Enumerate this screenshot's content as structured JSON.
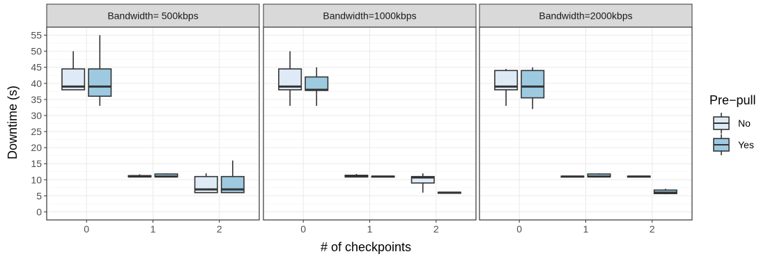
{
  "chart_data": {
    "type": "boxplot",
    "xlabel": "# of checkpoints",
    "ylabel": "Downtime (s)",
    "ylim": [
      -2.5,
      57.5
    ],
    "yticks": [
      0,
      5,
      10,
      15,
      20,
      25,
      30,
      35,
      40,
      45,
      50,
      55
    ],
    "categories": [
      "0",
      "1",
      "2"
    ],
    "legend": {
      "title": "Pre−pull",
      "position": "right",
      "entries": [
        {
          "label": "No",
          "color": "#deebf7"
        },
        {
          "label": "Yes",
          "color": "#9ecae1"
        }
      ]
    },
    "grid": true,
    "panels": [
      {
        "title": "Bandwidth= 500kbps",
        "boxes": [
          {
            "x": "0",
            "group": "No",
            "min": 38,
            "q1": 38,
            "median": 39,
            "q3": 44.5,
            "max": 50
          },
          {
            "x": "0",
            "group": "Yes",
            "min": 33,
            "q1": 36,
            "median": 39,
            "q3": 44.5,
            "max": 55
          },
          {
            "x": "1",
            "group": "No",
            "min": 10.7,
            "q1": 10.9,
            "median": 11,
            "q3": 11.3,
            "max": 11.7
          },
          {
            "x": "1",
            "group": "Yes",
            "min": 10.7,
            "q1": 10.9,
            "median": 11,
            "q3": 11.8,
            "max": 12
          },
          {
            "x": "2",
            "group": "No",
            "min": 6,
            "q1": 6,
            "median": 7,
            "q3": 11,
            "max": 12
          },
          {
            "x": "2",
            "group": "Yes",
            "min": 6,
            "q1": 6,
            "median": 7,
            "q3": 11,
            "max": 16
          }
        ]
      },
      {
        "title": "Bandwidth=1000kbps",
        "boxes": [
          {
            "x": "0",
            "group": "No",
            "min": 33,
            "q1": 38,
            "median": 39,
            "q3": 44.5,
            "max": 50
          },
          {
            "x": "0",
            "group": "Yes",
            "min": 33,
            "q1": 37.8,
            "median": 38,
            "q3": 42,
            "max": 45
          },
          {
            "x": "1",
            "group": "No",
            "min": 10.7,
            "q1": 10.9,
            "median": 11,
            "q3": 11.4,
            "max": 11.8
          },
          {
            "x": "1",
            "group": "Yes",
            "min": 10.8,
            "q1": 10.9,
            "median": 11,
            "q3": 11.1,
            "max": 11.2
          },
          {
            "x": "2",
            "group": "No",
            "min": 6,
            "q1": 9,
            "median": 10.7,
            "q3": 11,
            "max": 12
          },
          {
            "x": "2",
            "group": "Yes",
            "min": 5.7,
            "q1": 5.8,
            "median": 6,
            "q3": 6.1,
            "max": 6.2
          }
        ]
      },
      {
        "title": "Bandwidth=2000kbps",
        "boxes": [
          {
            "x": "0",
            "group": "No",
            "min": 33,
            "q1": 38,
            "median": 39,
            "q3": 44,
            "max": 44.5
          },
          {
            "x": "0",
            "group": "Yes",
            "min": 32,
            "q1": 35.5,
            "median": 39,
            "q3": 44,
            "max": 45
          },
          {
            "x": "1",
            "group": "No",
            "min": 10.8,
            "q1": 10.9,
            "median": 11,
            "q3": 11.1,
            "max": 11.2
          },
          {
            "x": "1",
            "group": "Yes",
            "min": 10.7,
            "q1": 10.9,
            "median": 11,
            "q3": 11.8,
            "max": 12
          },
          {
            "x": "2",
            "group": "No",
            "min": 10.8,
            "q1": 10.9,
            "median": 11,
            "q3": 11.1,
            "max": 11.2
          },
          {
            "x": "2",
            "group": "Yes",
            "min": 5.5,
            "q1": 5.7,
            "median": 6,
            "q3": 6.8,
            "max": 7.2
          }
        ]
      }
    ]
  }
}
